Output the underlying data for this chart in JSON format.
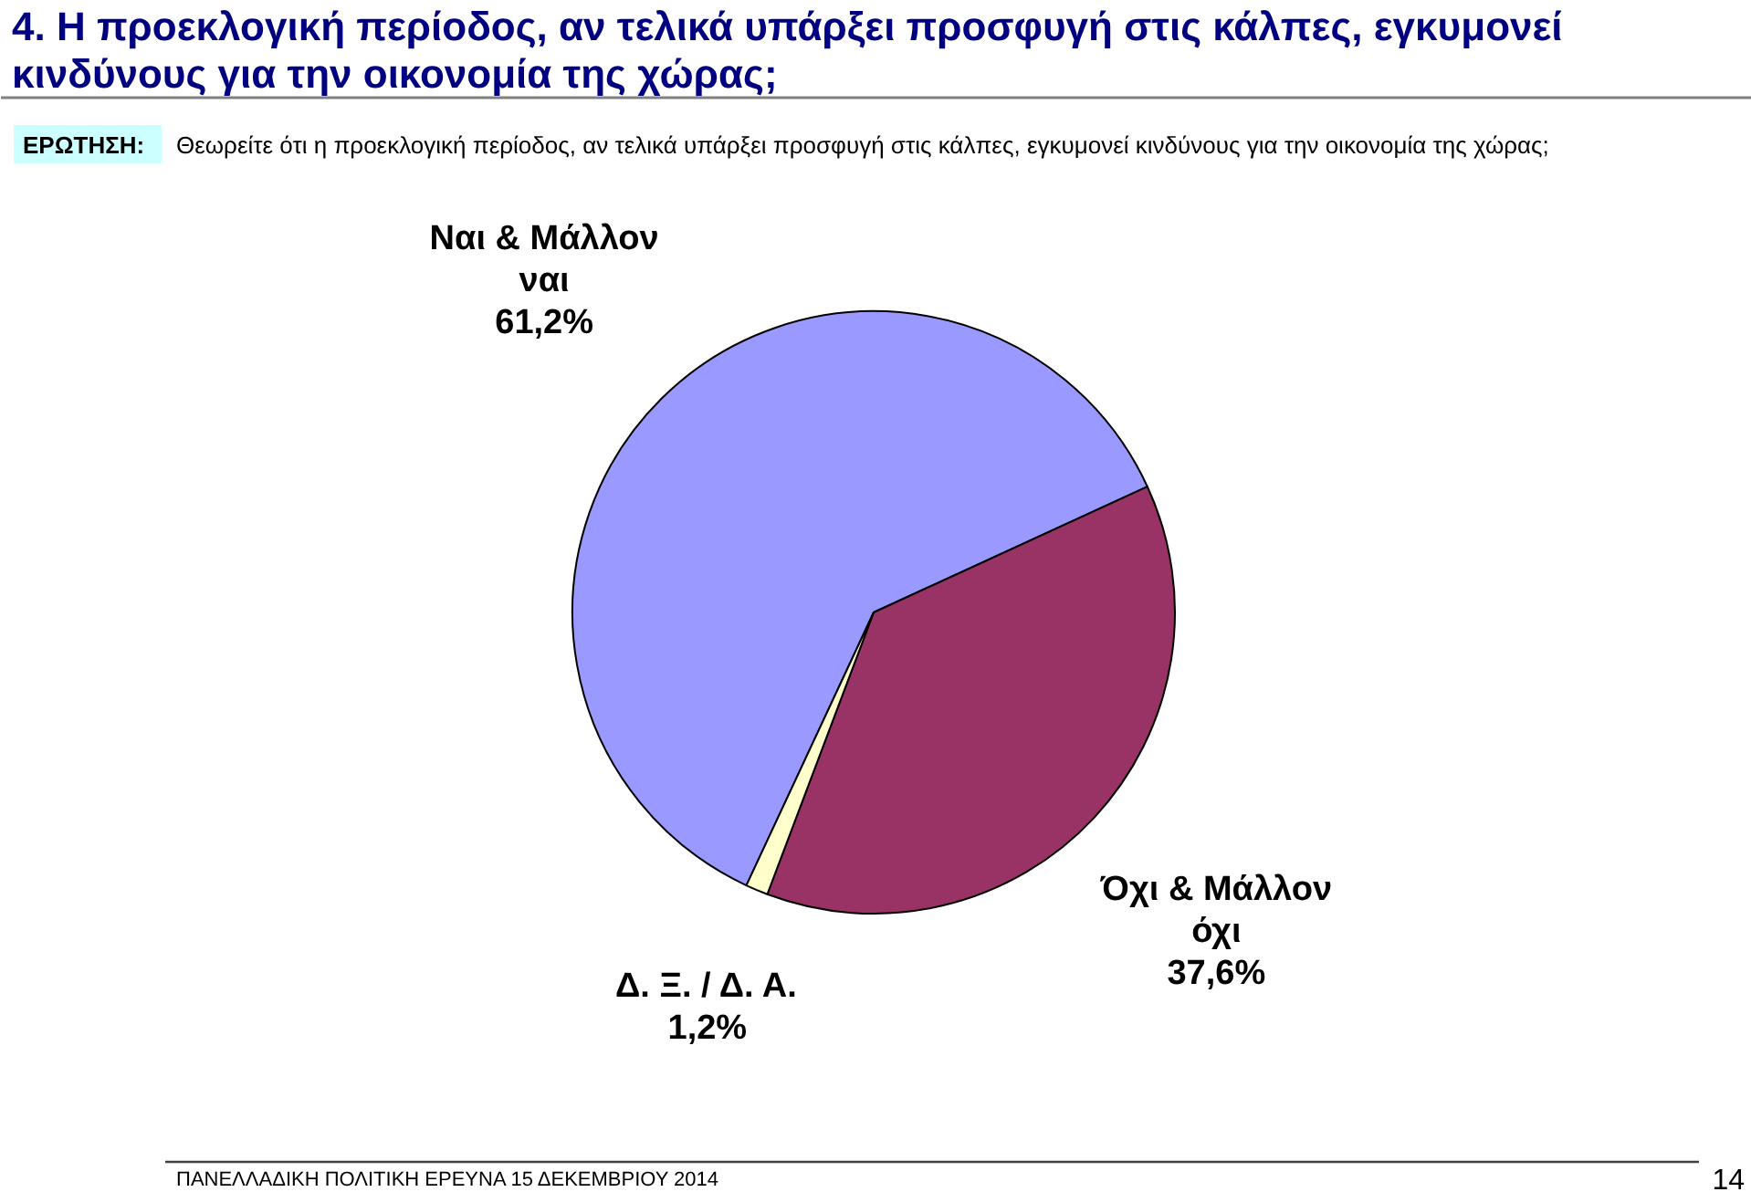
{
  "chart_data": {
    "type": "pie",
    "title": "4. Η προεκλογική περίοδος, αν τελικά υπάρξει προσφυγή στις κάλπες, εγκυμονεί κινδύνους για την οικονομία της χώρας;",
    "subtitle": "Θεωρείτε ότι η προεκλογική περίοδος, αν τελικά υπάρξει προσφυγή στις κάλπες, εγκυμονεί κινδύνους για την οικονομία της χώρας;",
    "categories": [
      "Ναι & Μάλλον ναι",
      "Όχι & Μάλλον όχι",
      "Δ. Ξ. / Δ. Α."
    ],
    "values": [
      61.2,
      37.6,
      1.2
    ],
    "value_labels": [
      "61,2%",
      "37,6%",
      "1,2%"
    ],
    "colors": [
      "#9999ff",
      "#993366",
      "#ffffcc"
    ],
    "annotations": [
      "ΕΡΩΤΗΣΗ:",
      "ΠΑΝΕΛΛΑΔΙΚΗ ΠΟΛΙΤΙΚΗ ΕΡΕΥΝΑ 15 ΔΕΚΕΜΒΡΙΟΥ 2014",
      "14"
    ]
  }
}
